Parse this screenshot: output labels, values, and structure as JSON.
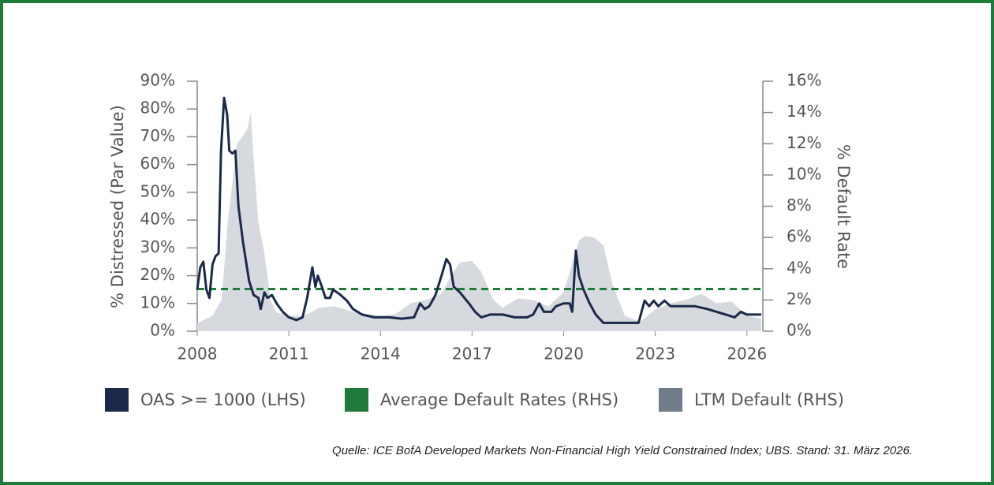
{
  "chart_data": {
    "type": "line",
    "y_label": "% Distressed (Par Value)",
    "y2_label": "% Default Rate",
    "source": "Quelle: ICE BofA Developed Markets Non-Financial High Yield Constrained Index; UBS. Stand: 31. März 2026.",
    "xlim": [
      2008,
      2026.6
    ],
    "xticks": [
      2008,
      2011,
      2014,
      2017,
      2020,
      2023,
      2026
    ],
    "ylim": [
      0,
      90
    ],
    "yticks": [
      {
        "value": 0,
        "label": "0%"
      },
      {
        "value": 10,
        "label": "10%"
      },
      {
        "value": 20,
        "label": "20%"
      },
      {
        "value": 30,
        "label": "30%"
      },
      {
        "value": 40,
        "label": "40%"
      },
      {
        "value": 50,
        "label": "50%"
      },
      {
        "value": 60,
        "label": "60%"
      },
      {
        "value": 70,
        "label": "70%"
      },
      {
        "value": 80,
        "label": "80%"
      },
      {
        "value": 90,
        "label": "90%"
      }
    ],
    "y2lim": [
      0,
      16
    ],
    "y2ticks": [
      {
        "value": 0,
        "label": "0%"
      },
      {
        "value": 2,
        "label": "2%"
      },
      {
        "value": 4,
        "label": "4%"
      },
      {
        "value": 6,
        "label": "6%"
      },
      {
        "value": 8,
        "label": "8%"
      },
      {
        "value": 10,
        "label": "10%"
      },
      {
        "value": 12,
        "label": "12%"
      },
      {
        "value": 14,
        "label": "14%"
      },
      {
        "value": 16,
        "label": "16%"
      }
    ],
    "series": [
      {
        "name": "LTM Default (RHS)",
        "type": "area",
        "axis": "y2",
        "color": "#d6d9dd",
        "legend_color": "#6f7d8b",
        "x": [
          2008.0,
          2008.5,
          2008.8,
          2009.0,
          2009.3,
          2009.5,
          2009.65,
          2009.75,
          2009.85,
          2010.0,
          2010.2,
          2010.4,
          2010.6,
          2011.0,
          2011.5,
          2012.0,
          2012.5,
          2013.0,
          2013.5,
          2014.0,
          2014.5,
          2015.0,
          2015.5,
          2016.0,
          2016.3,
          2016.6,
          2017.0,
          2017.3,
          2017.7,
          2018.0,
          2018.5,
          2019.0,
          2019.5,
          2020.0,
          2020.5,
          2020.7,
          2021.0,
          2021.3,
          2021.6,
          2022.0,
          2022.5,
          2023.0,
          2023.5,
          2024.0,
          2024.5,
          2025.0,
          2025.5,
          2026.0,
          2026.47
        ],
        "values": [
          0.5,
          1.0,
          2.0,
          7.0,
          12.0,
          12.5,
          13.0,
          14.0,
          11.0,
          7.0,
          5.0,
          2.0,
          1.2,
          1.0,
          1.0,
          1.5,
          1.6,
          1.3,
          1.1,
          1.0,
          1.1,
          1.8,
          2.0,
          2.4,
          3.5,
          4.4,
          4.5,
          3.8,
          2.0,
          1.5,
          2.1,
          2.0,
          1.6,
          2.5,
          5.8,
          6.1,
          6.0,
          5.5,
          3.0,
          1.0,
          0.6,
          1.4,
          1.8,
          2.0,
          2.4,
          1.8,
          1.9,
          1.0,
          0.8
        ]
      },
      {
        "name": "Average Default Rates (RHS)",
        "type": "hline",
        "axis": "y2",
        "color": "#1e7b3a",
        "value": 2.7
      },
      {
        "name": "OAS >= 1000 (LHS)",
        "type": "line",
        "axis": "y",
        "color": "#1b2a4a",
        "x": [
          2008.0,
          2008.1,
          2008.2,
          2008.3,
          2008.4,
          2008.5,
          2008.6,
          2008.7,
          2008.78,
          2008.88,
          2008.98,
          2009.05,
          2009.15,
          2009.25,
          2009.35,
          2009.5,
          2009.6,
          2009.7,
          2009.85,
          2010.0,
          2010.08,
          2010.2,
          2010.3,
          2010.45,
          2010.6,
          2010.8,
          2011.0,
          2011.25,
          2011.45,
          2011.6,
          2011.77,
          2011.87,
          2011.95,
          2012.05,
          2012.2,
          2012.35,
          2012.45,
          2012.7,
          2012.9,
          2013.1,
          2013.4,
          2013.8,
          2014.3,
          2014.7,
          2015.1,
          2015.3,
          2015.45,
          2015.6,
          2015.8,
          2016.0,
          2016.16,
          2016.28,
          2016.4,
          2016.6,
          2016.9,
          2017.1,
          2017.3,
          2017.6,
          2018.0,
          2018.4,
          2018.8,
          2019.0,
          2019.2,
          2019.35,
          2019.6,
          2019.75,
          2020.0,
          2020.2,
          2020.28,
          2020.4,
          2020.5,
          2020.65,
          2020.85,
          2021.05,
          2021.3,
          2021.8,
          2022.45,
          2022.65,
          2022.8,
          2022.95,
          2023.1,
          2023.3,
          2023.5,
          2023.9,
          2024.3,
          2024.7,
          2025.0,
          2025.3,
          2025.6,
          2025.8,
          2026.0,
          2026.2,
          2026.47
        ],
        "values": [
          15,
          23,
          25,
          15,
          12,
          24,
          27,
          28,
          65,
          84,
          78,
          65,
          64,
          65,
          45,
          32,
          25,
          18,
          13,
          12,
          8,
          14,
          12,
          13,
          10,
          7,
          5,
          4,
          5,
          12,
          23,
          16,
          20,
          17,
          12,
          12,
          15,
          13,
          11,
          8,
          6,
          5,
          5,
          4.5,
          5,
          10,
          8,
          9,
          13,
          20,
          26,
          24,
          16,
          14,
          10,
          7,
          5,
          6,
          6,
          5,
          5,
          6,
          10,
          7,
          7,
          9,
          10,
          10,
          7,
          29,
          20,
          15,
          10,
          6,
          3,
          3,
          3,
          11,
          9,
          11,
          9,
          11,
          9,
          9,
          9,
          8,
          7,
          6,
          5,
          7,
          6,
          6,
          6
        ]
      }
    ]
  }
}
